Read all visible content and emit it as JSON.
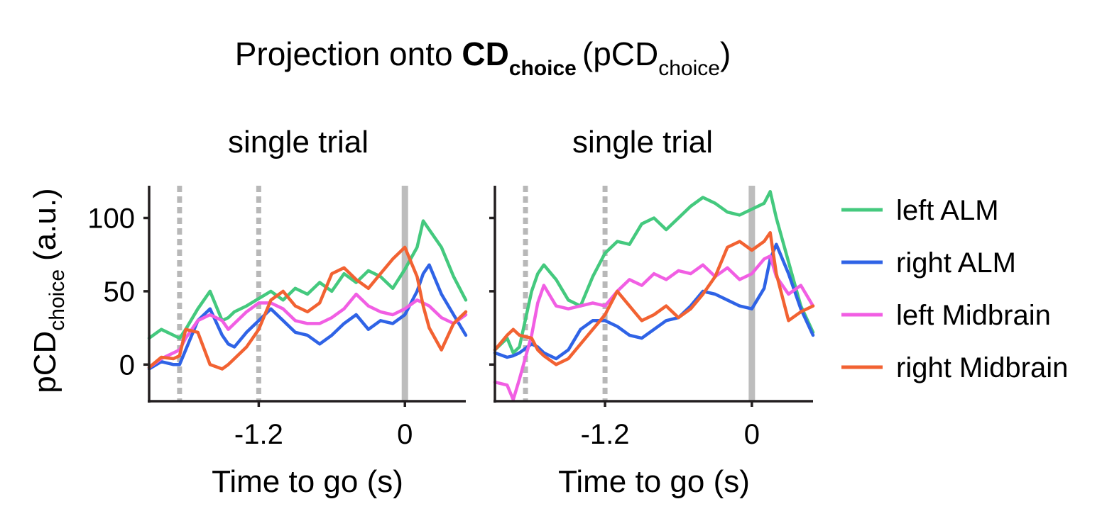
{
  "figure": {
    "title": {
      "prefix": "Projection onto ",
      "bold": "CD",
      "bold_sub": "choice",
      "open": "(pCD",
      "sub": "choice",
      "close": ")"
    },
    "ylabel": {
      "main": "pCD",
      "sub": "choice",
      "units": "(a.u.)"
    }
  },
  "colors": {
    "left ALM": "#44c97e",
    "right ALM": "#2f63e6",
    "left Midbrain": "#f15ee3",
    "right Midbrain": "#f26232",
    "axis": "#231f20",
    "event_dotted": "#b8b8b8",
    "go_cue": "#bdbdbd"
  },
  "chart_data": [
    {
      "type": "line",
      "title": "single trial",
      "xlabel": "Time to go (s)",
      "ylabel": "pCD choice (a.u.)",
      "xlim": [
        -2.1,
        0.5
      ],
      "ylim": [
        -25,
        122
      ],
      "xticks": [
        {
          "value": -1.2,
          "label": "-1.2"
        },
        {
          "value": 0,
          "label": "0"
        }
      ],
      "yticks": [
        {
          "value": 0,
          "label": "0"
        },
        {
          "value": 50,
          "label": "50"
        },
        {
          "value": 100,
          "label": "100"
        }
      ],
      "event_lines": [
        {
          "x": -1.85,
          "style": "dotted"
        },
        {
          "x": -1.2,
          "style": "dotted"
        },
        {
          "x": 0,
          "style": "solid"
        }
      ],
      "series": [
        {
          "name": "left ALM",
          "x": [
            -2.1,
            -2.0,
            -1.9,
            -1.85,
            -1.8,
            -1.7,
            -1.6,
            -1.5,
            -1.45,
            -1.4,
            -1.3,
            -1.2,
            -1.1,
            -1.0,
            -0.9,
            -0.8,
            -0.7,
            -0.6,
            -0.5,
            -0.4,
            -0.3,
            -0.2,
            -0.1,
            0.0,
            0.1,
            0.15,
            0.2,
            0.3,
            0.4,
            0.5
          ],
          "y": [
            18,
            24,
            20,
            18,
            24,
            38,
            50,
            30,
            32,
            36,
            40,
            45,
            50,
            44,
            52,
            48,
            56,
            50,
            62,
            56,
            64,
            60,
            52,
            65,
            80,
            98,
            92,
            80,
            60,
            44
          ]
        },
        {
          "name": "right ALM",
          "x": [
            -2.1,
            -2.0,
            -1.9,
            -1.85,
            -1.8,
            -1.7,
            -1.6,
            -1.5,
            -1.45,
            -1.4,
            -1.3,
            -1.2,
            -1.1,
            -1.0,
            -0.9,
            -0.8,
            -0.7,
            -0.6,
            -0.5,
            -0.4,
            -0.3,
            -0.2,
            -0.1,
            0.0,
            0.1,
            0.15,
            0.2,
            0.3,
            0.4,
            0.5
          ],
          "y": [
            -3,
            2,
            0,
            0,
            10,
            30,
            38,
            20,
            14,
            12,
            22,
            30,
            38,
            30,
            22,
            20,
            14,
            20,
            28,
            34,
            24,
            30,
            28,
            34,
            50,
            62,
            68,
            48,
            34,
            20
          ]
        },
        {
          "name": "left Midbrain",
          "x": [
            -2.1,
            -2.0,
            -1.9,
            -1.85,
            -1.8,
            -1.7,
            -1.6,
            -1.5,
            -1.45,
            -1.4,
            -1.3,
            -1.2,
            -1.1,
            -1.0,
            -0.9,
            -0.8,
            -0.7,
            -0.6,
            -0.5,
            -0.4,
            -0.3,
            -0.2,
            -0.1,
            0.0,
            0.1,
            0.15,
            0.2,
            0.3,
            0.4,
            0.5
          ],
          "y": [
            -2,
            4,
            8,
            10,
            18,
            30,
            34,
            30,
            24,
            28,
            36,
            42,
            42,
            38,
            30,
            28,
            28,
            32,
            38,
            48,
            40,
            36,
            34,
            38,
            44,
            42,
            40,
            32,
            28,
            34
          ]
        },
        {
          "name": "right Midbrain",
          "x": [
            -2.1,
            -2.0,
            -1.9,
            -1.85,
            -1.8,
            -1.7,
            -1.6,
            -1.5,
            -1.45,
            -1.4,
            -1.3,
            -1.2,
            -1.1,
            -1.0,
            -0.9,
            -0.8,
            -0.7,
            -0.6,
            -0.5,
            -0.4,
            -0.3,
            -0.2,
            -0.1,
            0.0,
            0.1,
            0.15,
            0.2,
            0.3,
            0.4,
            0.5
          ],
          "y": [
            -2,
            5,
            4,
            6,
            24,
            22,
            0,
            -3,
            0,
            4,
            12,
            24,
            44,
            50,
            40,
            36,
            42,
            62,
            66,
            58,
            52,
            62,
            72,
            80,
            60,
            40,
            25,
            10,
            28,
            36
          ]
        }
      ]
    },
    {
      "type": "line",
      "title": "single trial",
      "xlabel": "Time to go (s)",
      "ylabel": "pCD choice (a.u.)",
      "xlim": [
        -2.1,
        0.5
      ],
      "ylim": [
        -25,
        122
      ],
      "xticks": [
        {
          "value": -1.2,
          "label": "-1.2"
        },
        {
          "value": 0,
          "label": "0"
        }
      ],
      "yticks": [
        {
          "value": 0,
          "label": ""
        },
        {
          "value": 50,
          "label": ""
        },
        {
          "value": 100,
          "label": ""
        }
      ],
      "event_lines": [
        {
          "x": -1.85,
          "style": "dotted"
        },
        {
          "x": -1.2,
          "style": "dotted"
        },
        {
          "x": 0,
          "style": "solid"
        }
      ],
      "series": [
        {
          "name": "left ALM",
          "x": [
            -2.1,
            -2.0,
            -1.95,
            -1.9,
            -1.8,
            -1.75,
            -1.7,
            -1.6,
            -1.5,
            -1.4,
            -1.3,
            -1.2,
            -1.1,
            -1.0,
            -0.9,
            -0.8,
            -0.7,
            -0.6,
            -0.5,
            -0.4,
            -0.3,
            -0.2,
            -0.1,
            0.0,
            0.1,
            0.15,
            0.2,
            0.3,
            0.4,
            0.5
          ],
          "y": [
            10,
            18,
            8,
            12,
            50,
            62,
            68,
            58,
            44,
            40,
            60,
            76,
            84,
            82,
            96,
            100,
            92,
            100,
            108,
            114,
            110,
            104,
            102,
            106,
            110,
            118,
            100,
            70,
            40,
            22
          ]
        },
        {
          "name": "right ALM",
          "x": [
            -2.1,
            -2.0,
            -1.95,
            -1.9,
            -1.8,
            -1.75,
            -1.7,
            -1.6,
            -1.5,
            -1.4,
            -1.3,
            -1.2,
            -1.1,
            -1.0,
            -0.9,
            -0.8,
            -0.7,
            -0.6,
            -0.5,
            -0.4,
            -0.3,
            -0.2,
            -0.1,
            0.0,
            0.1,
            0.15,
            0.2,
            0.3,
            0.4,
            0.5
          ],
          "y": [
            8,
            5,
            6,
            8,
            14,
            12,
            8,
            4,
            10,
            24,
            30,
            30,
            26,
            20,
            18,
            24,
            30,
            32,
            40,
            50,
            48,
            44,
            40,
            38,
            52,
            72,
            82,
            62,
            38,
            20
          ]
        },
        {
          "name": "left Midbrain",
          "x": [
            -2.1,
            -2.0,
            -1.95,
            -1.9,
            -1.8,
            -1.75,
            -1.7,
            -1.6,
            -1.5,
            -1.4,
            -1.3,
            -1.2,
            -1.1,
            -1.0,
            -0.9,
            -0.8,
            -0.7,
            -0.6,
            -0.5,
            -0.4,
            -0.3,
            -0.2,
            -0.1,
            0.0,
            0.1,
            0.15,
            0.2,
            0.3,
            0.4,
            0.5
          ],
          "y": [
            -12,
            -14,
            -24,
            -10,
            20,
            42,
            54,
            40,
            38,
            40,
            42,
            40,
            50,
            58,
            54,
            62,
            58,
            64,
            62,
            68,
            60,
            66,
            58,
            62,
            72,
            74,
            60,
            48,
            54,
            40
          ]
        },
        {
          "name": "right Midbrain",
          "x": [
            -2.1,
            -2.0,
            -1.95,
            -1.9,
            -1.8,
            -1.75,
            -1.7,
            -1.6,
            -1.5,
            -1.4,
            -1.3,
            -1.2,
            -1.1,
            -1.0,
            -0.9,
            -0.8,
            -0.7,
            -0.6,
            -0.5,
            -0.4,
            -0.3,
            -0.2,
            -0.1,
            0.0,
            0.1,
            0.15,
            0.2,
            0.3,
            0.4,
            0.5
          ],
          "y": [
            10,
            20,
            24,
            20,
            18,
            10,
            6,
            0,
            4,
            14,
            24,
            34,
            50,
            40,
            30,
            34,
            40,
            32,
            38,
            48,
            60,
            80,
            84,
            78,
            84,
            90,
            62,
            30,
            36,
            40
          ]
        }
      ]
    }
  ],
  "legend": [
    {
      "label": "left ALM"
    },
    {
      "label": "right ALM"
    },
    {
      "label": "left Midbrain"
    },
    {
      "label": "right Midbrain"
    }
  ]
}
